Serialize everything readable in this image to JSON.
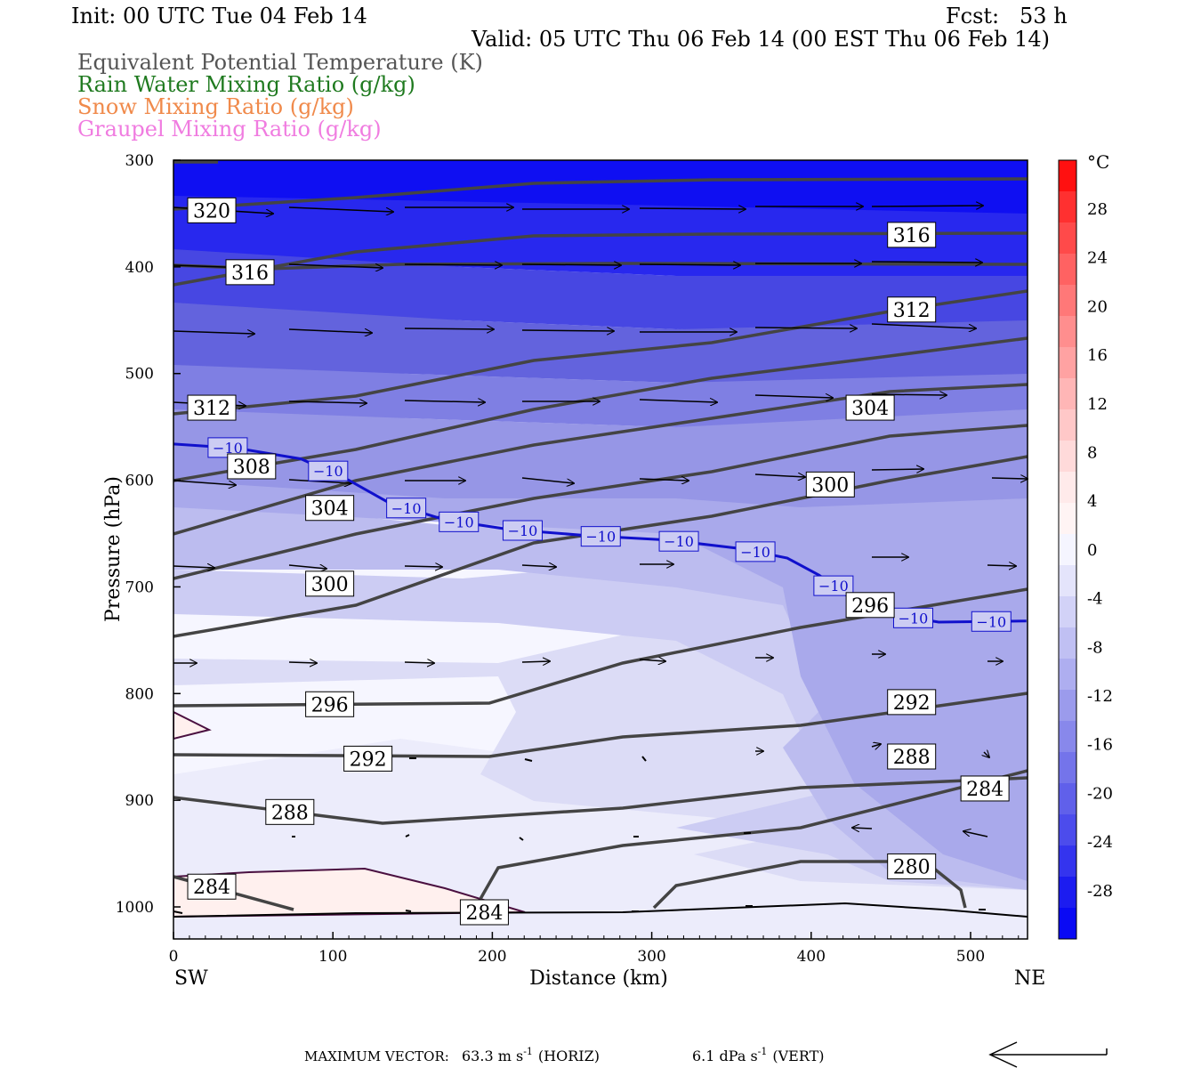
{
  "header": {
    "init": "Init: 00 UTC Tue 04 Feb 14",
    "fcst": "Fcst:   53 h",
    "valid": "Valid: 05 UTC Thu 06 Feb 14 (00 EST Thu 06 Feb 14)"
  },
  "legend": [
    {
      "label": "Equivalent Potential Temperature (K)",
      "color": "#555555"
    },
    {
      "label": "Rain Water Mixing Ratio (g/kg)",
      "color": "#1f7a1f"
    },
    {
      "label": "Snow Mixing Ratio (g/kg)",
      "color": "#f08a4b"
    },
    {
      "label": "Graupel Mixing Ratio (g/kg)",
      "color": "#f07ce0"
    }
  ],
  "chart_data": {
    "type": "heatmap",
    "xlabel": "Distance (km)",
    "ylabel": "Pressure (hPa)",
    "xlim": [
      0,
      535
    ],
    "ylim": [
      1030,
      300
    ],
    "x_ticks": [
      0,
      100,
      200,
      300,
      400,
      500
    ],
    "y_ticks": [
      300,
      400,
      500,
      600,
      700,
      800,
      900,
      1000
    ],
    "left_end": "SW",
    "right_end": "NE",
    "colorbar": {
      "unit": "°C",
      "tick_labels": [
        "28",
        "24",
        "20",
        "16",
        "12",
        "8",
        "4",
        "0",
        "-4",
        "-8",
        "-12",
        "-16",
        "-20",
        "-24",
        "-28"
      ]
    },
    "theta_e_labels": [
      {
        "text": "320",
        "x": 24,
        "p": 347
      },
      {
        "text": "316",
        "x": 48,
        "p": 405
      },
      {
        "text": "316",
        "x": 463,
        "p": 370
      },
      {
        "text": "312",
        "x": 463,
        "p": 440
      },
      {
        "text": "312",
        "x": 24,
        "p": 532
      },
      {
        "text": "308",
        "x": 49,
        "p": 587
      },
      {
        "text": "304",
        "x": 98,
        "p": 626
      },
      {
        "text": "304",
        "x": 437,
        "p": 532
      },
      {
        "text": "300",
        "x": 412,
        "p": 604
      },
      {
        "text": "300",
        "x": 98,
        "p": 697
      },
      {
        "text": "296",
        "x": 437,
        "p": 717
      },
      {
        "text": "296",
        "x": 98,
        "p": 810
      },
      {
        "text": "292",
        "x": 463,
        "p": 808
      },
      {
        "text": "292",
        "x": 122,
        "p": 861
      },
      {
        "text": "288",
        "x": 463,
        "p": 859
      },
      {
        "text": "288",
        "x": 73,
        "p": 911
      },
      {
        "text": "284",
        "x": 509,
        "p": 889
      },
      {
        "text": "284",
        "x": 24,
        "p": 981
      },
      {
        "text": "284",
        "x": 195,
        "p": 1005
      },
      {
        "text": "280",
        "x": 463,
        "p": 962
      }
    ],
    "isotherm_minus10": {
      "label": "−10",
      "x": [
        0,
        40,
        80,
        110,
        135,
        170,
        210,
        260,
        310,
        355,
        385,
        405,
        435,
        480,
        535
      ],
      "p": [
        566,
        570,
        580,
        600,
        621,
        637,
        646,
        652,
        656,
        664,
        673,
        689,
        722,
        733,
        732
      ],
      "label_x": [
        34,
        97,
        146,
        179,
        219,
        268,
        317,
        365,
        414,
        464,
        513
      ]
    }
  },
  "footer": {
    "max_vector_label": "MAXIMUM VECTOR:",
    "horiz_value": "63.3 m s",
    "horiz_unit": "(HORIZ)",
    "vert_value": "6.1 dPa s",
    "vert_unit": "(VERT)",
    "exponent": "-1"
  }
}
